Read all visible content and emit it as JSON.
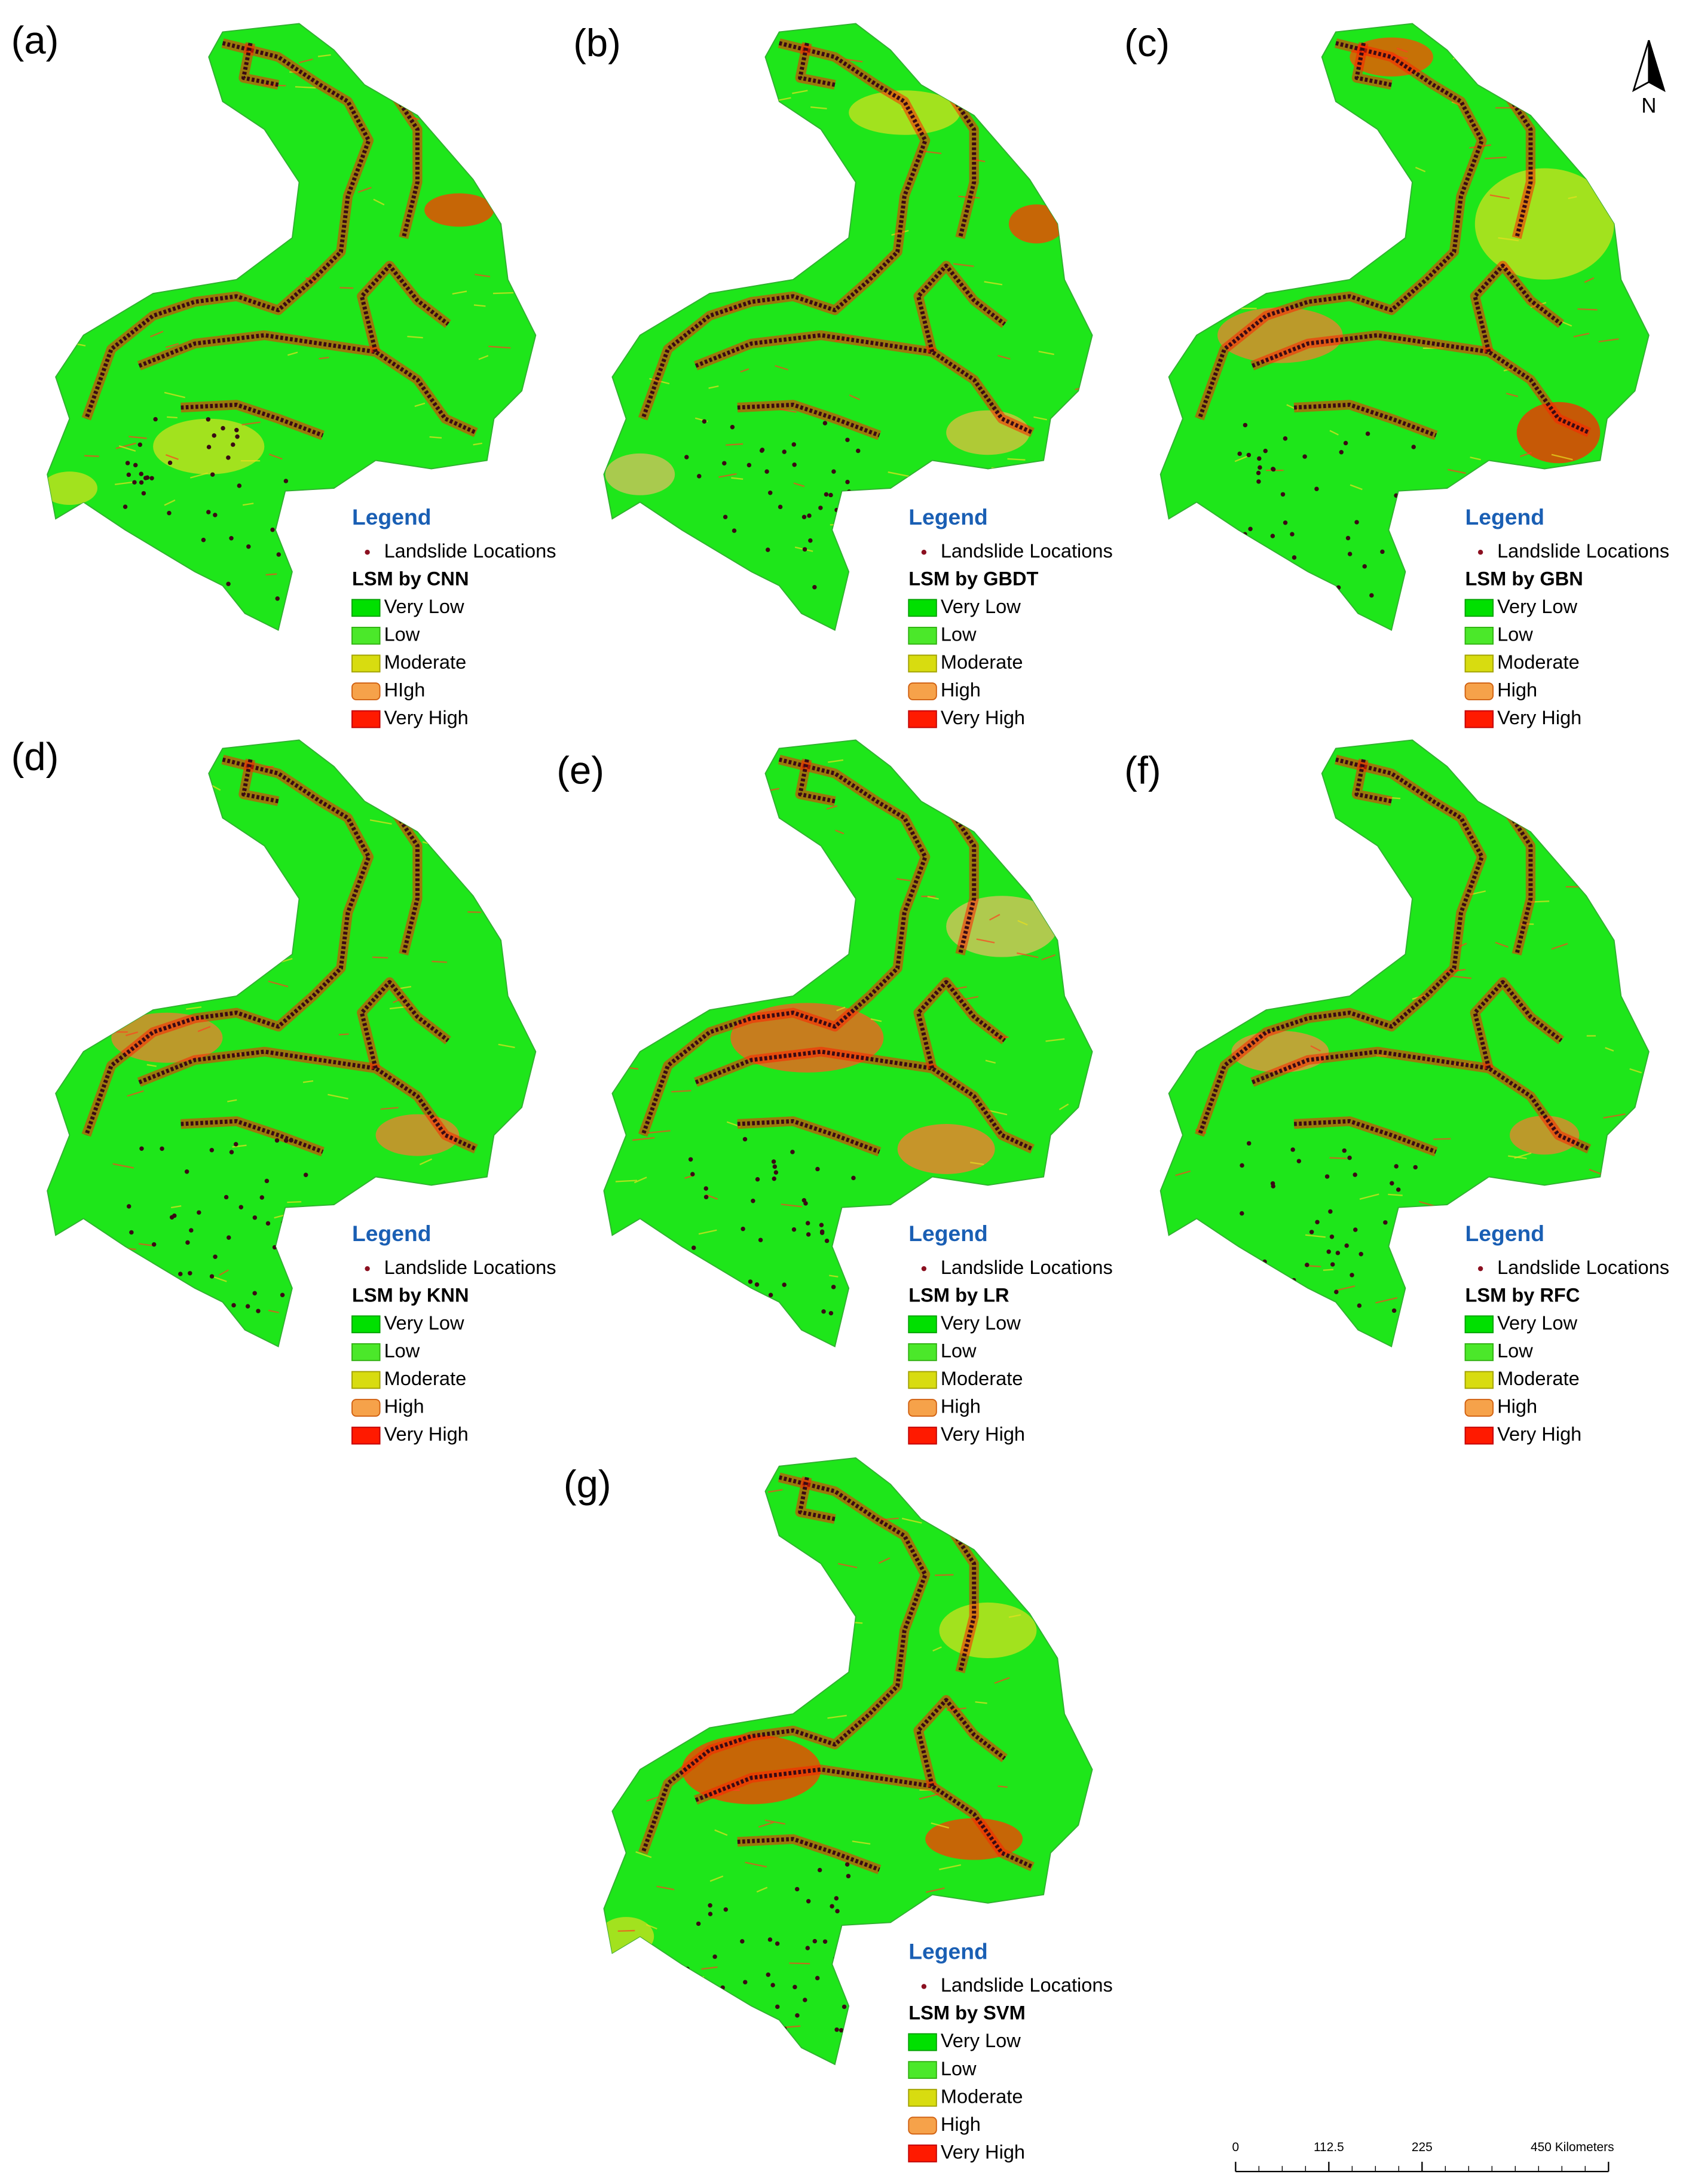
{
  "panels": [
    {
      "label": "(a)",
      "legend_title": "Legend",
      "point_label": "Landslide Locations",
      "model_title": "LSM by CNN",
      "classes": [
        "Very Low",
        "Low",
        "Moderate",
        "HIgh",
        "Very High"
      ]
    },
    {
      "label": "(b)",
      "legend_title": "Legend",
      "point_label": "Landslide Locations",
      "model_title": "LSM by GBDT",
      "classes": [
        "Very Low",
        "Low",
        "Moderate",
        "High",
        "Very High"
      ]
    },
    {
      "label": "(c)",
      "legend_title": "Legend",
      "point_label": "Landslide Locations",
      "model_title": "LSM by GBN",
      "classes": [
        "Very Low",
        "Low",
        "Moderate",
        "High",
        "Very High"
      ]
    },
    {
      "label": "(d)",
      "legend_title": "Legend",
      "point_label": "Landslide Locations",
      "model_title": "LSM by KNN",
      "classes": [
        "Very Low",
        "Low",
        "Moderate",
        "High",
        "Very High"
      ]
    },
    {
      "label": "(e)",
      "legend_title": "Legend",
      "point_label": "Landslide Locations",
      "model_title": "LSM by LR",
      "classes": [
        "Very Low",
        "Low",
        "Moderate",
        "High",
        "Very High"
      ]
    },
    {
      "label": "(f)",
      "legend_title": "Legend",
      "point_label": "Landslide Locations",
      "model_title": "LSM by RFC",
      "classes": [
        "Very Low",
        "Low",
        "Moderate",
        "High",
        "Very High"
      ]
    },
    {
      "label": "(g)",
      "legend_title": "Legend",
      "point_label": "Landslide Locations",
      "model_title": "LSM by SVM",
      "classes": [
        "Very Low",
        "Low",
        "Moderate",
        "High",
        "Very High"
      ]
    }
  ],
  "north": "N",
  "scale_bar": {
    "ticks": [
      {
        "value": 0,
        "label": "0"
      },
      {
        "value": 112.5,
        "label": "112.5"
      },
      {
        "value": 225,
        "label": "225"
      },
      {
        "value": 450,
        "label": "450 Kilometers"
      }
    ]
  }
}
